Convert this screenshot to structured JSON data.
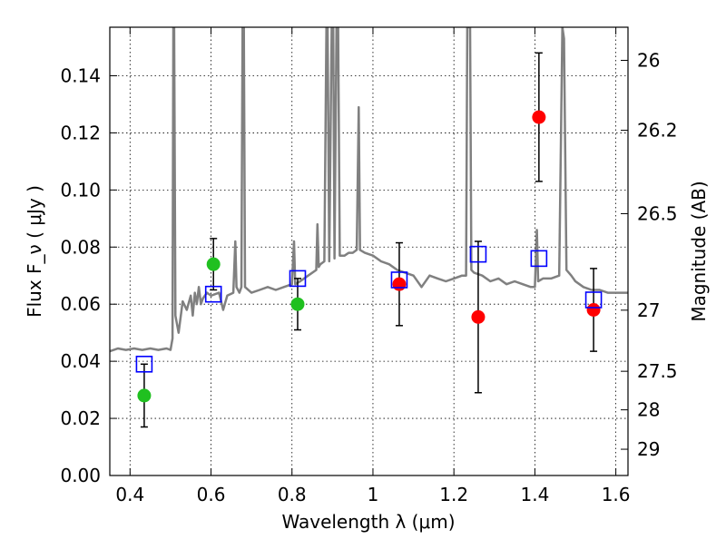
{
  "chart_data": {
    "type": "scatter",
    "title": "",
    "xlabel": "Wavelength  λ (μm)",
    "ylabel": "Flux  F_ν  ( μJy )",
    "y2label": "Magnitude (AB)",
    "xlim": [
      0.35,
      1.63
    ],
    "ylim": [
      0.0,
      0.157
    ],
    "grid": true,
    "x_ticks": [
      0.4,
      0.6,
      0.8,
      1.0,
      1.2,
      1.4,
      1.6
    ],
    "x_tick_labels": [
      "0.4",
      "0.6",
      "0.8",
      "1",
      "1.2",
      "1.4",
      "1.6"
    ],
    "y_ticks": [
      0.0,
      0.02,
      0.04,
      0.06,
      0.08,
      0.1,
      0.12,
      0.14
    ],
    "y_tick_labels": [
      "0.00",
      "0.02",
      "0.04",
      "0.06",
      "0.08",
      "0.10",
      "0.12",
      "0.14"
    ],
    "y2_ticks": [
      {
        "label": "26",
        "flux": 0.1454
      },
      {
        "label": "26.2",
        "flux": 0.1209
      },
      {
        "label": "26.5",
        "flux": 0.0917
      },
      {
        "label": "27",
        "flux": 0.0579
      },
      {
        "label": "27.5",
        "flux": 0.0365
      },
      {
        "label": "28",
        "flux": 0.023
      },
      {
        "label": "29",
        "flux": 0.0092
      }
    ],
    "series": [
      {
        "marker": "circle",
        "color": "#20c020",
        "points": [
          {
            "x": 0.435,
            "y": 0.028,
            "err": 0.011
          },
          {
            "x": 0.606,
            "y": 0.074,
            "err": 0.009
          },
          {
            "x": 0.814,
            "y": 0.06,
            "err": 0.009
          }
        ]
      },
      {
        "marker": "circle",
        "color": "#ff0000",
        "points": [
          {
            "x": 1.065,
            "y": 0.067,
            "err": 0.0145
          },
          {
            "x": 1.26,
            "y": 0.0555,
            "err": 0.0265
          },
          {
            "x": 1.41,
            "y": 0.1255,
            "err": 0.0225
          },
          {
            "x": 1.545,
            "y": 0.058,
            "err": 0.0145
          }
        ]
      },
      {
        "marker": "open-square",
        "color": "#0000ff",
        "points": [
          {
            "x": 0.435,
            "y": 0.039
          },
          {
            "x": 0.606,
            "y": 0.0635
          },
          {
            "x": 0.814,
            "y": 0.069
          },
          {
            "x": 1.065,
            "y": 0.0685
          },
          {
            "x": 1.26,
            "y": 0.0775
          },
          {
            "x": 1.41,
            "y": 0.076
          },
          {
            "x": 1.545,
            "y": 0.0615
          }
        ]
      },
      {
        "line": true,
        "color": "#808080",
        "points": [
          [
            0.35,
            0.0435
          ],
          [
            0.37,
            0.0445
          ],
          [
            0.39,
            0.044
          ],
          [
            0.41,
            0.0445
          ],
          [
            0.43,
            0.044
          ],
          [
            0.45,
            0.0445
          ],
          [
            0.47,
            0.044
          ],
          [
            0.49,
            0.0445
          ],
          [
            0.5,
            0.044
          ],
          [
            0.505,
            0.048
          ],
          [
            0.507,
            0.157
          ],
          [
            0.509,
            0.157
          ],
          [
            0.512,
            0.056
          ],
          [
            0.52,
            0.05
          ],
          [
            0.53,
            0.061
          ],
          [
            0.54,
            0.058
          ],
          [
            0.55,
            0.063
          ],
          [
            0.555,
            0.056
          ],
          [
            0.56,
            0.064
          ],
          [
            0.565,
            0.06
          ],
          [
            0.57,
            0.066
          ],
          [
            0.575,
            0.06
          ],
          [
            0.58,
            0.062
          ],
          [
            0.59,
            0.064
          ],
          [
            0.6,
            0.063
          ],
          [
            0.62,
            0.064
          ],
          [
            0.63,
            0.058
          ],
          [
            0.64,
            0.063
          ],
          [
            0.655,
            0.064
          ],
          [
            0.66,
            0.082
          ],
          [
            0.663,
            0.066
          ],
          [
            0.67,
            0.064
          ],
          [
            0.675,
            0.066
          ],
          [
            0.678,
            0.157
          ],
          [
            0.681,
            0.157
          ],
          [
            0.684,
            0.066
          ],
          [
            0.7,
            0.064
          ],
          [
            0.72,
            0.065
          ],
          [
            0.74,
            0.066
          ],
          [
            0.76,
            0.065
          ],
          [
            0.78,
            0.066
          ],
          [
            0.8,
            0.067
          ],
          [
            0.805,
            0.082
          ],
          [
            0.808,
            0.067
          ],
          [
            0.82,
            0.068
          ],
          [
            0.84,
            0.07
          ],
          [
            0.86,
            0.072
          ],
          [
            0.863,
            0.088
          ],
          [
            0.866,
            0.073
          ],
          [
            0.87,
            0.074
          ],
          [
            0.88,
            0.075
          ],
          [
            0.885,
            0.157
          ],
          [
            0.888,
            0.157
          ],
          [
            0.892,
            0.075
          ],
          [
            0.898,
            0.157
          ],
          [
            0.902,
            0.157
          ],
          [
            0.905,
            0.076
          ],
          [
            0.91,
            0.157
          ],
          [
            0.914,
            0.157
          ],
          [
            0.918,
            0.077
          ],
          [
            0.93,
            0.077
          ],
          [
            0.94,
            0.078
          ],
          [
            0.95,
            0.078
          ],
          [
            0.96,
            0.079
          ],
          [
            0.965,
            0.129
          ],
          [
            0.968,
            0.079
          ],
          [
            0.98,
            0.078
          ],
          [
            1.0,
            0.077
          ],
          [
            1.02,
            0.075
          ],
          [
            1.04,
            0.074
          ],
          [
            1.06,
            0.072
          ],
          [
            1.08,
            0.071
          ],
          [
            1.1,
            0.07
          ],
          [
            1.12,
            0.066
          ],
          [
            1.14,
            0.07
          ],
          [
            1.16,
            0.069
          ],
          [
            1.18,
            0.068
          ],
          [
            1.2,
            0.069
          ],
          [
            1.22,
            0.07
          ],
          [
            1.23,
            0.07
          ],
          [
            1.233,
            0.157
          ],
          [
            1.24,
            0.157
          ],
          [
            1.243,
            0.072
          ],
          [
            1.25,
            0.071
          ],
          [
            1.27,
            0.07
          ],
          [
            1.29,
            0.068
          ],
          [
            1.31,
            0.069
          ],
          [
            1.33,
            0.067
          ],
          [
            1.35,
            0.068
          ],
          [
            1.37,
            0.067
          ],
          [
            1.39,
            0.066
          ],
          [
            1.4,
            0.066
          ],
          [
            1.405,
            0.086
          ],
          [
            1.408,
            0.068
          ],
          [
            1.42,
            0.069
          ],
          [
            1.44,
            0.069
          ],
          [
            1.46,
            0.07
          ],
          [
            1.468,
            0.157
          ],
          [
            1.472,
            0.153
          ],
          [
            1.478,
            0.072
          ],
          [
            1.49,
            0.07
          ],
          [
            1.5,
            0.068
          ],
          [
            1.52,
            0.066
          ],
          [
            1.54,
            0.065
          ],
          [
            1.56,
            0.065
          ],
          [
            1.58,
            0.064
          ],
          [
            1.6,
            0.064
          ],
          [
            1.63,
            0.064
          ]
        ]
      }
    ]
  }
}
